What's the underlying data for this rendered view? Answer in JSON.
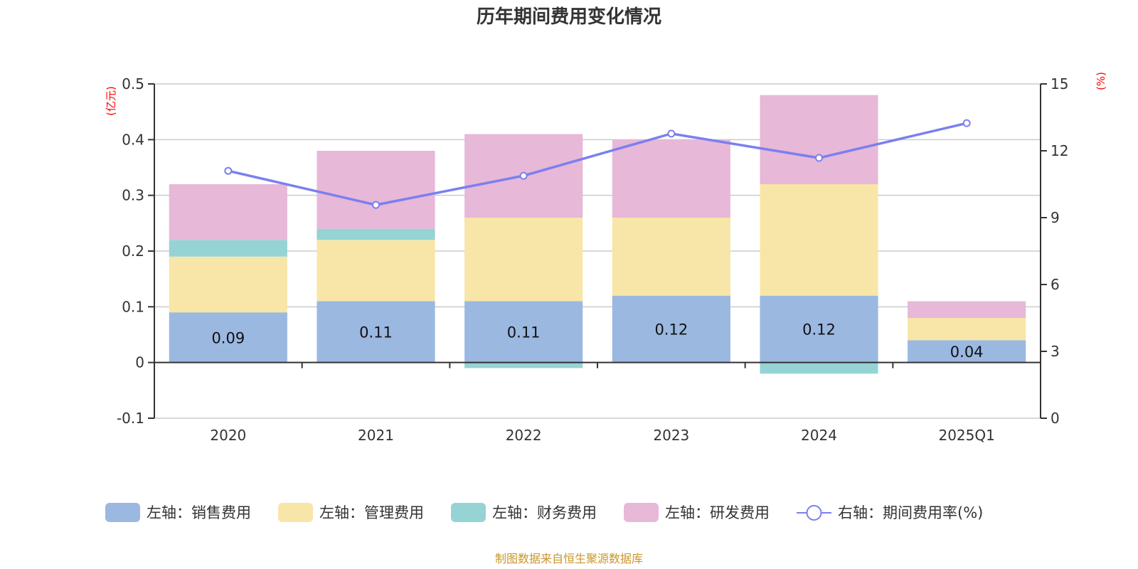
{
  "chart_data": {
    "type": "bar",
    "stacked": true,
    "title": "历年期间费用变化情况",
    "categories": [
      "2020",
      "2021",
      "2022",
      "2023",
      "2024",
      "2025Q1"
    ],
    "left_axis": {
      "unit_label": "(亿元)",
      "ylim": [
        -0.1,
        0.5
      ],
      "ticks": [
        "-0.1",
        "0",
        "0.1",
        "0.2",
        "0.3",
        "0.4",
        "0.5"
      ],
      "tick_values": [
        -0.1,
        0,
        0.1,
        0.2,
        0.3,
        0.4,
        0.5
      ]
    },
    "right_axis": {
      "unit_label": "(%)",
      "ylim": [
        0,
        15
      ],
      "ticks": [
        "0",
        "3",
        "6",
        "9",
        "12",
        "15"
      ],
      "tick_values": [
        0,
        3,
        6,
        9,
        12,
        15
      ]
    },
    "series": [
      {
        "name": "左轴：销售费用",
        "axis": "left",
        "type": "bar",
        "color": "#9bb8e1",
        "values": [
          0.09,
          0.11,
          0.11,
          0.12,
          0.12,
          0.04
        ],
        "labels": [
          "0.09",
          "0.11",
          "0.11",
          "0.12",
          "0.12",
          "0.04"
        ]
      },
      {
        "name": "左轴：管理费用",
        "axis": "left",
        "type": "bar",
        "color": "#f8e6a8",
        "values": [
          0.1,
          0.11,
          0.15,
          0.14,
          0.2,
          0.04
        ]
      },
      {
        "name": "左轴：财务费用",
        "axis": "left",
        "type": "bar",
        "color": "#96d3d4",
        "values": [
          0.03,
          0.02,
          -0.01,
          0.0,
          -0.02,
          0.0
        ]
      },
      {
        "name": "左轴：研发费用",
        "axis": "left",
        "type": "bar",
        "color": "#e7b8d8",
        "values": [
          0.1,
          0.14,
          0.15,
          0.14,
          0.16,
          0.03
        ]
      },
      {
        "name": "右轴：期间费用率(%)",
        "axis": "right",
        "type": "line",
        "color": "#7b7ff0",
        "values": [
          11.1,
          9.57,
          10.88,
          12.77,
          11.68,
          13.24
        ]
      }
    ],
    "grid": true,
    "legend_position": "bottom"
  },
  "footer": {
    "source": "制图数据来自恒生聚源数据库"
  }
}
